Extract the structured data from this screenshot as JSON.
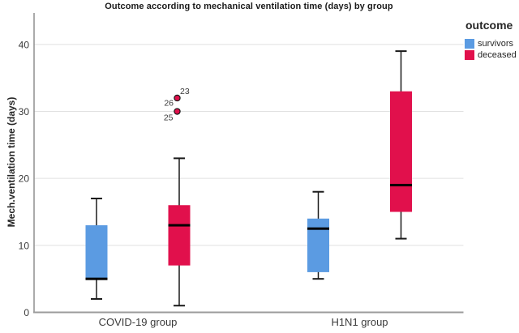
{
  "chart_data": {
    "type": "boxplot",
    "title": "Outcome according to mechanical ventilation time (days) by group",
    "ylabel": "Mech.ventilation time (days)",
    "xlabel": "",
    "categories": [
      "COVID-19 group",
      "H1N1 group"
    ],
    "ylim": [
      0,
      44.7
    ],
    "yticks": [
      0,
      10,
      20,
      30,
      40
    ],
    "grid": true,
    "legend_title": "outcome",
    "legend_position": "top-right",
    "axis_color": "#8f8f8f",
    "gridline_color": "#e1e1e1",
    "text_color": "#3a3a3a",
    "series": [
      {
        "name": "survivors",
        "color": "#5b9be2",
        "boxes": [
          {
            "category": "COVID-19 group",
            "whisker_low": 2,
            "q1": 5,
            "median": 5,
            "q3": 13,
            "whisker_high": 17,
            "outliers": []
          },
          {
            "category": "H1N1 group",
            "whisker_low": 5,
            "q1": 6,
            "median": 12.5,
            "q3": 14,
            "whisker_high": 18,
            "outliers": []
          }
        ]
      },
      {
        "name": "deceased",
        "color": "#e1104c",
        "boxes": [
          {
            "category": "COVID-19 group",
            "whisker_low": 1,
            "q1": 7,
            "median": 13,
            "q3": 16,
            "whisker_high": 23,
            "outliers": [
              {
                "value": 32,
                "case_label": "23",
                "label_side": "ne"
              },
              {
                "value": 30,
                "case_label": "26",
                "label_side": "nw"
              },
              {
                "value": 30,
                "case_label": "25",
                "label_side": "sw"
              }
            ]
          },
          {
            "category": "H1N1 group",
            "whisker_low": 11,
            "q1": 15,
            "median": 19,
            "q3": 33,
            "whisker_high": 39,
            "outliers": []
          }
        ]
      }
    ]
  }
}
